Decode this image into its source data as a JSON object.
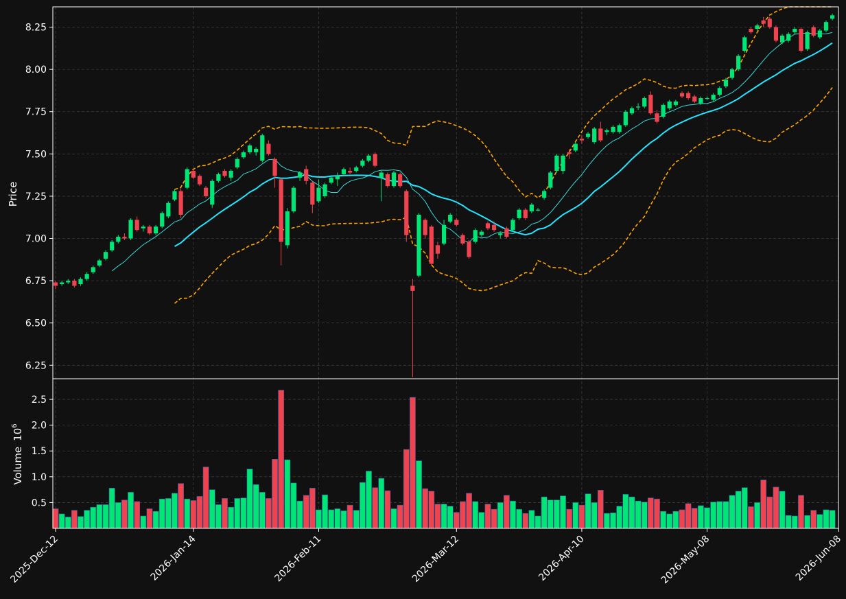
{
  "chart_data": {
    "type": "candlestick",
    "title": "",
    "price_panel": {
      "ylabel": "Price",
      "ylim": [
        6.17,
        8.37
      ],
      "yticks": [
        6.25,
        6.5,
        6.75,
        7.0,
        7.25,
        7.5,
        7.75,
        8.0,
        8.25
      ],
      "ytick_labels": [
        "6.25",
        "6.50",
        "6.75",
        "7.00",
        "7.25",
        "7.50",
        "7.75",
        "8.00",
        "8.25"
      ],
      "grid": true
    },
    "volume_panel": {
      "ylabel": "Volume",
      "scale_label": "10",
      "scale_exponent": "6",
      "ylim": [
        0,
        2.9
      ],
      "yticks": [
        0.5,
        1.0,
        1.5,
        2.0,
        2.5
      ],
      "ytick_labels": [
        "0.5",
        "1.0",
        "1.5",
        "2.0",
        "2.5"
      ],
      "grid": true
    },
    "x_ticks": [
      {
        "i": 0,
        "label": "2025-Dec-12"
      },
      {
        "i": 22,
        "label": "2026-Jan-14"
      },
      {
        "i": 42,
        "label": "2026-Feb-11"
      },
      {
        "i": 64,
        "label": "2026-Mar-12"
      },
      {
        "i": 84,
        "label": "2026-Apr-10"
      },
      {
        "i": 104,
        "label": "2026-May-08"
      },
      {
        "i": 125,
        "label": "2026-Jun-08"
      }
    ],
    "candles": [
      [
        6.74,
        6.75,
        6.7,
        6.72,
        0.38
      ],
      [
        6.73,
        6.75,
        6.72,
        6.74,
        0.28
      ],
      [
        6.74,
        6.76,
        6.73,
        6.75,
        0.22
      ],
      [
        6.75,
        6.76,
        6.71,
        6.72,
        0.35
      ],
      [
        6.73,
        6.77,
        6.72,
        6.76,
        0.23
      ],
      [
        6.76,
        6.8,
        6.75,
        6.79,
        0.35
      ],
      [
        6.8,
        6.84,
        6.79,
        6.83,
        0.41
      ],
      [
        6.84,
        6.88,
        6.83,
        6.87,
        0.46
      ],
      [
        6.88,
        6.93,
        6.87,
        6.92,
        0.46
      ],
      [
        6.93,
        6.99,
        6.92,
        6.98,
        0.78
      ],
      [
        6.98,
        7.02,
        6.97,
        7.01,
        0.5
      ],
      [
        7.01,
        7.03,
        6.99,
        7.0,
        0.55
      ],
      [
        7.0,
        7.12,
        6.99,
        7.11,
        0.7
      ],
      [
        7.11,
        7.13,
        7.04,
        7.05,
        0.52
      ],
      [
        7.06,
        7.08,
        7.04,
        7.07,
        0.24
      ],
      [
        7.07,
        7.08,
        7.02,
        7.03,
        0.38
      ],
      [
        7.03,
        7.08,
        7.02,
        7.07,
        0.33
      ],
      [
        7.07,
        7.16,
        7.06,
        7.15,
        0.57
      ],
      [
        7.13,
        7.22,
        7.12,
        7.21,
        0.58
      ],
      [
        7.23,
        7.29,
        7.22,
        7.28,
        0.68
      ],
      [
        7.28,
        7.3,
        7.12,
        7.14,
        0.87
      ],
      [
        7.3,
        7.42,
        7.29,
        7.41,
        0.57
      ],
      [
        7.4,
        7.41,
        7.35,
        7.36,
        0.54
      ],
      [
        7.37,
        7.38,
        7.31,
        7.32,
        0.62
      ],
      [
        7.3,
        7.31,
        7.24,
        7.25,
        1.19
      ],
      [
        7.2,
        7.35,
        7.18,
        7.34,
        0.75
      ],
      [
        7.34,
        7.39,
        7.33,
        7.38,
        0.46
      ],
      [
        7.4,
        7.41,
        7.36,
        7.37,
        0.58
      ],
      [
        7.36,
        7.41,
        7.34,
        7.4,
        0.41
      ],
      [
        7.42,
        7.48,
        7.41,
        7.47,
        0.58
      ],
      [
        7.48,
        7.52,
        7.47,
        7.51,
        0.59
      ],
      [
        7.51,
        7.56,
        7.5,
        7.55,
        1.15
      ],
      [
        7.51,
        7.54,
        7.49,
        7.53,
        0.85
      ],
      [
        7.46,
        7.62,
        7.45,
        7.61,
        0.7
      ],
      [
        7.56,
        7.58,
        7.49,
        7.5,
        0.58
      ],
      [
        7.47,
        7.48,
        7.3,
        7.37,
        1.34
      ],
      [
        7.35,
        7.36,
        6.84,
        6.98,
        2.68
      ],
      [
        6.96,
        7.18,
        6.94,
        7.16,
        1.33
      ],
      [
        7.16,
        7.31,
        7.15,
        7.3,
        0.88
      ],
      [
        7.36,
        7.4,
        7.34,
        7.39,
        0.53
      ],
      [
        7.41,
        7.43,
        7.32,
        7.34,
        0.64
      ],
      [
        7.33,
        7.34,
        7.15,
        7.2,
        0.78
      ],
      [
        7.22,
        7.35,
        7.21,
        7.3,
        0.36
      ],
      [
        7.25,
        7.33,
        7.24,
        7.32,
        0.65
      ],
      [
        7.33,
        7.37,
        7.32,
        7.36,
        0.36
      ],
      [
        7.35,
        7.39,
        7.31,
        7.37,
        0.38
      ],
      [
        7.38,
        7.42,
        7.37,
        7.41,
        0.34
      ],
      [
        7.4,
        7.42,
        7.38,
        7.39,
        0.45
      ],
      [
        7.4,
        7.43,
        7.39,
        7.42,
        0.35
      ],
      [
        7.43,
        7.47,
        7.42,
        7.46,
        0.89
      ],
      [
        7.46,
        7.5,
        7.45,
        7.49,
        1.11
      ],
      [
        7.5,
        7.51,
        7.42,
        7.43,
        0.79
      ],
      [
        7.36,
        7.4,
        7.22,
        7.39,
        0.97
      ],
      [
        7.38,
        7.39,
        7.3,
        7.31,
        0.73
      ],
      [
        7.31,
        7.4,
        7.3,
        7.39,
        0.38
      ],
      [
        7.38,
        7.39,
        7.3,
        7.31,
        0.45
      ],
      [
        7.28,
        7.29,
        6.98,
        7.02,
        1.53
      ],
      [
        6.72,
        6.76,
        6.18,
        6.69,
        2.54
      ],
      [
        6.78,
        7.15,
        6.77,
        7.14,
        1.31
      ],
      [
        7.11,
        7.12,
        7.0,
        7.02,
        0.77
      ],
      [
        7.07,
        7.08,
        6.84,
        6.85,
        0.72
      ],
      [
        6.96,
        6.98,
        6.88,
        6.91,
        0.47
      ],
      [
        6.97,
        7.11,
        6.96,
        7.08,
        0.47
      ],
      [
        7.1,
        7.15,
        7.09,
        7.14,
        0.43
      ],
      [
        7.11,
        7.12,
        7.07,
        7.08,
        0.31
      ],
      [
        7.02,
        7.03,
        6.96,
        6.97,
        0.52
      ],
      [
        6.98,
        6.99,
        6.88,
        6.89,
        0.68
      ],
      [
        6.98,
        7.06,
        6.97,
        7.05,
        0.52
      ],
      [
        7.02,
        7.05,
        7.01,
        7.04,
        0.31
      ],
      [
        7.09,
        7.1,
        7.05,
        7.06,
        0.47
      ],
      [
        7.08,
        7.1,
        7.04,
        7.05,
        0.37
      ],
      [
        7.02,
        7.04,
        7.0,
        7.03,
        0.5
      ],
      [
        7.06,
        7.07,
        7.0,
        7.01,
        0.64
      ],
      [
        7.05,
        7.12,
        7.04,
        7.11,
        0.53
      ],
      [
        7.12,
        7.18,
        7.11,
        7.17,
        0.37
      ],
      [
        7.17,
        7.18,
        7.11,
        7.12,
        0.29
      ],
      [
        7.16,
        7.21,
        7.15,
        7.2,
        0.35
      ],
      [
        7.17,
        7.18,
        7.16,
        7.17,
        0.24
      ],
      [
        7.24,
        7.29,
        7.23,
        7.28,
        0.61
      ],
      [
        7.3,
        7.4,
        7.29,
        7.39,
        0.55
      ],
      [
        7.4,
        7.5,
        7.39,
        7.49,
        0.55
      ],
      [
        7.4,
        7.5,
        7.38,
        7.49,
        0.63
      ],
      [
        7.51,
        7.53,
        7.47,
        7.5,
        0.37
      ],
      [
        7.52,
        7.57,
        7.51,
        7.56,
        0.5
      ],
      [
        7.59,
        7.61,
        7.56,
        7.58,
        0.45
      ],
      [
        7.6,
        7.63,
        7.59,
        7.62,
        0.67
      ],
      [
        7.57,
        7.66,
        7.56,
        7.65,
        0.5
      ],
      [
        7.65,
        7.69,
        7.57,
        7.58,
        0.74
      ],
      [
        7.63,
        7.65,
        7.61,
        7.64,
        0.29
      ],
      [
        7.63,
        7.67,
        7.62,
        7.66,
        0.3
      ],
      [
        7.63,
        7.68,
        7.62,
        7.67,
        0.43
      ],
      [
        7.67,
        7.76,
        7.66,
        7.75,
        0.66
      ],
      [
        7.74,
        7.78,
        7.73,
        7.77,
        0.61
      ],
      [
        7.78,
        7.8,
        7.76,
        7.78,
        0.53
      ],
      [
        7.78,
        7.84,
        7.77,
        7.83,
        0.51
      ],
      [
        7.85,
        7.87,
        7.73,
        7.74,
        0.59
      ],
      [
        7.74,
        7.76,
        7.68,
        7.69,
        0.57
      ],
      [
        7.72,
        7.8,
        7.71,
        7.79,
        0.33
      ],
      [
        7.77,
        7.82,
        7.76,
        7.81,
        0.28
      ],
      [
        7.79,
        7.82,
        7.78,
        7.81,
        0.33
      ],
      [
        7.86,
        7.87,
        7.83,
        7.84,
        0.36
      ],
      [
        7.86,
        7.87,
        7.82,
        7.83,
        0.48
      ],
      [
        7.84,
        7.85,
        7.8,
        7.81,
        0.39
      ],
      [
        7.8,
        7.84,
        7.79,
        7.83,
        0.44
      ],
      [
        7.83,
        7.84,
        7.82,
        7.83,
        0.4
      ],
      [
        7.82,
        7.86,
        7.81,
        7.85,
        0.51
      ],
      [
        7.85,
        7.9,
        7.84,
        7.89,
        0.52
      ],
      [
        7.9,
        7.95,
        7.89,
        7.94,
        0.52
      ],
      [
        7.95,
        8.01,
        7.94,
        8.0,
        0.64
      ],
      [
        8.0,
        8.09,
        7.99,
        8.08,
        0.72
      ],
      [
        8.11,
        8.2,
        8.1,
        8.19,
        0.79
      ],
      [
        8.24,
        8.25,
        8.21,
        8.22,
        0.42
      ],
      [
        8.24,
        8.27,
        8.23,
        8.26,
        0.5
      ],
      [
        8.29,
        8.31,
        8.25,
        8.27,
        0.94
      ],
      [
        8.3,
        8.31,
        8.24,
        8.25,
        0.61
      ],
      [
        8.25,
        8.26,
        8.16,
        8.17,
        0.8
      ],
      [
        8.16,
        8.21,
        8.15,
        8.2,
        0.72
      ],
      [
        8.17,
        8.22,
        8.16,
        8.21,
        0.25
      ],
      [
        8.22,
        8.25,
        8.21,
        8.24,
        0.24
      ],
      [
        8.24,
        8.25,
        8.1,
        8.11,
        0.64
      ],
      [
        8.12,
        8.23,
        8.11,
        8.22,
        0.25
      ],
      [
        8.25,
        8.26,
        8.19,
        8.2,
        0.35
      ],
      [
        8.19,
        8.24,
        8.18,
        8.23,
        0.27
      ],
      [
        8.23,
        8.29,
        8.22,
        8.28,
        0.36
      ],
      [
        8.3,
        8.33,
        8.29,
        8.32,
        0.35
      ]
    ],
    "overlays": [
      {
        "style": "bollinger-band",
        "color": "#ffa500",
        "dashed": true
      },
      {
        "style": "moving-average-thin",
        "color": "#3ad8d8"
      },
      {
        "style": "moving-average-thick",
        "color": "#22e5ff"
      }
    ],
    "colors": {
      "up": "#00e676",
      "down": "#ef4350",
      "background": "#111111",
      "grid": "#3a3a3a",
      "axis": "#ffffff"
    }
  }
}
